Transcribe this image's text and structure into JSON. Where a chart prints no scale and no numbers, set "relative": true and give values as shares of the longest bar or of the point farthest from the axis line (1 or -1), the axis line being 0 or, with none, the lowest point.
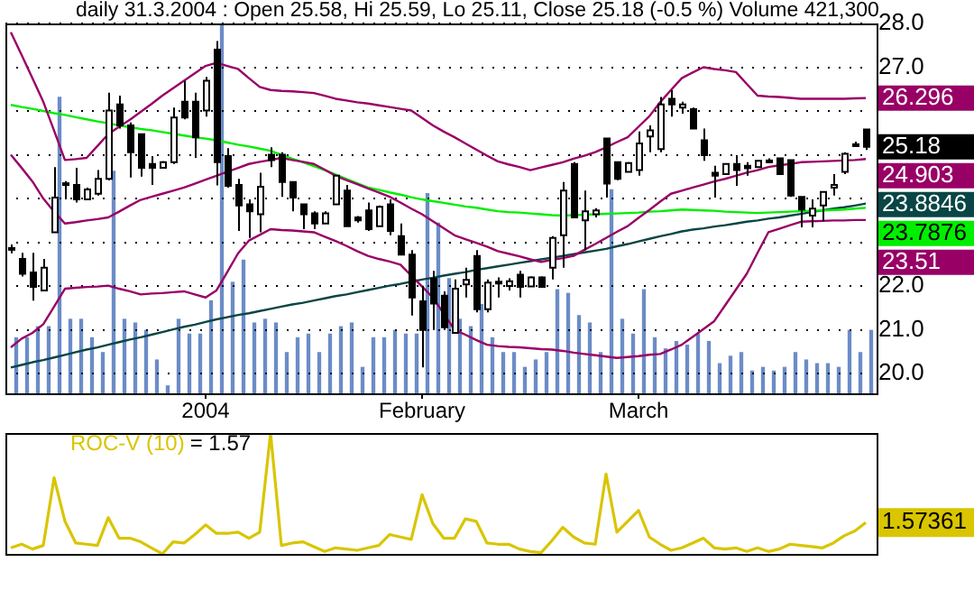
{
  "chart_data": [
    {
      "type": "candlestick",
      "title": "daily 31.3.2004 : Open 25.58, Hi 25.59, Lo 25.11, Close 25.18 (-0.5 %) Volume 421,300",
      "categories": [
        null,
        null,
        null,
        null,
        null,
        null,
        null,
        null,
        null,
        null,
        null,
        null,
        null,
        null,
        null,
        null,
        null,
        null,
        "2004",
        null,
        null,
        null,
        null,
        null,
        null,
        null,
        null,
        null,
        null,
        null,
        null,
        null,
        null,
        null,
        null,
        null,
        null,
        null,
        "February",
        null,
        null,
        null,
        null,
        null,
        null,
        null,
        null,
        null,
        null,
        null,
        null,
        null,
        null,
        null,
        null,
        null,
        null,
        null,
        "March",
        null,
        null,
        null,
        null,
        null,
        null,
        null,
        null,
        null,
        null,
        null,
        null,
        null,
        null,
        null,
        null,
        null,
        null,
        null,
        null,
        null
      ],
      "ohlc": [
        [
          22.83,
          22.95,
          22.75,
          22.87
        ],
        [
          22.62,
          22.76,
          22.22,
          22.28
        ],
        [
          22.31,
          22.76,
          21.67,
          21.98
        ],
        [
          21.9,
          22.62,
          21.9,
          22.42
        ],
        [
          23.23,
          24.72,
          23.23,
          24.02
        ],
        [
          24.33,
          24.4,
          23.98,
          24.35
        ],
        [
          24.31,
          24.7,
          23.91,
          23.98
        ],
        [
          23.98,
          24.25,
          23.98,
          24.21
        ],
        [
          24.11,
          24.65,
          24.07,
          24.45
        ],
        [
          24.45,
          26.42,
          24.42,
          26.01
        ],
        [
          26.15,
          26.35,
          25.6,
          25.67
        ],
        [
          25.67,
          25.74,
          24.48,
          25.06
        ],
        [
          25.47,
          25.47,
          24.5,
          24.7
        ],
        [
          24.79,
          24.97,
          24.31,
          24.7
        ],
        [
          24.7,
          24.85,
          24.7,
          24.83
        ],
        [
          24.83,
          26.08,
          24.79,
          25.85
        ],
        [
          26.21,
          26.69,
          25.81,
          25.85
        ],
        [
          26.21,
          26.42,
          24.93,
          25.4
        ],
        [
          26.01,
          26.78,
          25.87,
          26.69
        ],
        [
          27.4,
          27.6,
          24.3,
          24.83
        ],
        [
          24.97,
          25.15,
          24.25,
          24.29
        ],
        [
          24.31,
          24.45,
          23.26,
          23.84
        ],
        [
          23.87,
          23.98,
          23.1,
          23.71
        ],
        [
          23.64,
          24.59,
          23.23,
          24.27
        ],
        [
          25.0,
          25.17,
          24.72,
          24.88
        ],
        [
          25.0,
          25.06,
          24.04,
          24.38
        ],
        [
          24.38,
          24.38,
          23.71,
          24.02
        ],
        [
          23.87,
          23.87,
          23.3,
          23.64
        ],
        [
          23.66,
          23.71,
          23.3,
          23.43
        ],
        [
          23.43,
          23.71,
          23.43,
          23.66
        ],
        [
          23.87,
          24.52,
          23.87,
          24.52
        ],
        [
          24.18,
          24.31,
          23.37,
          23.37
        ],
        [
          23.57,
          23.6,
          23.45,
          23.5
        ],
        [
          23.73,
          23.91,
          23.26,
          23.3
        ],
        [
          23.37,
          23.84,
          23.37,
          23.81
        ],
        [
          23.87,
          23.98,
          23.16,
          23.26
        ],
        [
          23.14,
          23.43,
          22.72,
          22.72
        ],
        [
          22.72,
          22.82,
          21.33,
          21.74
        ],
        [
          21.65,
          22.01,
          20.14,
          21.0
        ],
        [
          22.17,
          22.35,
          21.0,
          21.6
        ],
        [
          21.78,
          21.88,
          21.0,
          21.06
        ],
        [
          20.93,
          22.15,
          20.93,
          21.94
        ],
        [
          22.04,
          22.42,
          21.74,
          22.14
        ],
        [
          22.69,
          22.82,
          21.4,
          21.47
        ],
        [
          21.47,
          22.15,
          21.4,
          22.08
        ],
        [
          22.08,
          22.2,
          21.74,
          22.1
        ],
        [
          22.0,
          22.18,
          21.9,
          22.11
        ],
        [
          22.26,
          22.35,
          21.74,
          21.98
        ],
        [
          21.99,
          22.22,
          21.99,
          22.2
        ],
        [
          22.2,
          22.22,
          21.98,
          21.98
        ],
        [
          22.42,
          23.14,
          22.15,
          23.1
        ],
        [
          23.16,
          24.38,
          22.42,
          24.18
        ],
        [
          24.79,
          24.83,
          23.57,
          23.57
        ],
        [
          23.5,
          24.18,
          22.82,
          23.71
        ],
        [
          23.64,
          23.78,
          23.57,
          23.73
        ],
        [
          25.37,
          25.37,
          24.02,
          24.34
        ],
        [
          24.83,
          24.83,
          24.42,
          24.45
        ],
        [
          24.61,
          24.83,
          24.61,
          24.81
        ],
        [
          24.65,
          25.53,
          24.52,
          25.26
        ],
        [
          25.42,
          25.67,
          25.06,
          25.56
        ],
        [
          25.13,
          26.32,
          25.06,
          26.15
        ],
        [
          26.28,
          26.48,
          25.87,
          26.15
        ],
        [
          26.08,
          26.21,
          25.94,
          26.15
        ],
        [
          26.04,
          26.08,
          25.6,
          25.6
        ],
        [
          25.33,
          25.6,
          24.86,
          24.99
        ],
        [
          24.59,
          24.75,
          24.02,
          24.52
        ],
        [
          24.56,
          24.79,
          24.56,
          24.79
        ],
        [
          24.79,
          24.99,
          24.29,
          24.65
        ],
        [
          24.75,
          24.83,
          24.52,
          24.69
        ],
        [
          24.72,
          24.88,
          24.72,
          24.86
        ],
        [
          24.85,
          24.92,
          24.81,
          24.87
        ],
        [
          24.92,
          24.92,
          24.56,
          24.56
        ],
        [
          24.88,
          24.88,
          24.04,
          24.07
        ],
        [
          24.04,
          24.04,
          23.34,
          23.75
        ],
        [
          23.61,
          23.98,
          23.34,
          23.77
        ],
        [
          23.84,
          24.15,
          23.48,
          24.15
        ],
        [
          24.25,
          24.56,
          24.07,
          24.31
        ],
        [
          24.61,
          25.06,
          24.56,
          25.02
        ],
        [
          25.22,
          25.3,
          25.2,
          25.24
        ],
        [
          25.58,
          25.59,
          25.11,
          25.18
        ]
      ],
      "value_labels": [
        null,
        null,
        null,
        null,
        null,
        null,
        null,
        null,
        null,
        null,
        null,
        null,
        null,
        null,
        null,
        null,
        null,
        null,
        null,
        null,
        null,
        null,
        null,
        null,
        null,
        null,
        null,
        null,
        null,
        null,
        null,
        null,
        null,
        null,
        null,
        null,
        null,
        null,
        null,
        null,
        null,
        null,
        null,
        null,
        null,
        null,
        null,
        null,
        null,
        null,
        null,
        null,
        null,
        null,
        null,
        null,
        null,
        null,
        null,
        null,
        null,
        null,
        null,
        null,
        null,
        null,
        null,
        null,
        null,
        null,
        null,
        null,
        null,
        null,
        null,
        null,
        null,
        null,
        null,
        "25.18"
      ],
      "series": [
        {
          "type": "line",
          "color": "#990066",
          "values": [
            27.8,
            27.28,
            26.75,
            26.21,
            25.55,
            24.88,
            24.9,
            24.93,
            25.2,
            25.47,
            25.64,
            25.8,
            25.98,
            26.16,
            26.35,
            26.52,
            26.69,
            26.86,
            27.03,
            27.1,
            27.03,
            26.96,
            26.75,
            26.55,
            26.48,
            26.46,
            26.45,
            26.43,
            26.41,
            26.35,
            26.28,
            26.24,
            26.2,
            26.17,
            26.13,
            26.09,
            26.05,
            26.01,
            25.84,
            25.67,
            25.53,
            25.4,
            25.26,
            25.12,
            24.98,
            24.85,
            24.78,
            24.72,
            24.65,
            24.71,
            24.77,
            24.83,
            24.91,
            24.98,
            25.06,
            25.17,
            25.29,
            25.4,
            25.64,
            25.88,
            26.2,
            26.48,
            26.75,
            26.88,
            27.0,
            26.96,
            26.93,
            26.89,
            26.62,
            26.35,
            26.33,
            26.32,
            26.3,
            26.28,
            26.28,
            26.28,
            26.28,
            26.28,
            26.29,
            26.296
          ],
          "value_labels": [
            null,
            null,
            null,
            null,
            null,
            null,
            null,
            null,
            null,
            null,
            null,
            null,
            null,
            null,
            null,
            null,
            null,
            null,
            null,
            null,
            null,
            null,
            null,
            null,
            null,
            null,
            null,
            null,
            null,
            null,
            null,
            null,
            null,
            null,
            null,
            null,
            null,
            null,
            null,
            null,
            null,
            null,
            null,
            null,
            null,
            null,
            null,
            null,
            null,
            null,
            null,
            null,
            null,
            null,
            null,
            null,
            null,
            null,
            null,
            null,
            null,
            null,
            null,
            null,
            null,
            null,
            null,
            null,
            null,
            null,
            null,
            null,
            null,
            null,
            null,
            null,
            null,
            null,
            null,
            "26.296"
          ]
        },
        {
          "type": "line",
          "color": "#990066",
          "values": [
            25.0,
            24.7,
            24.39,
            24.0,
            23.7,
            23.43,
            23.46,
            23.5,
            23.53,
            23.57,
            23.7,
            23.84,
            23.97,
            24.04,
            24.11,
            24.18,
            24.25,
            24.34,
            24.43,
            24.52,
            24.61,
            24.7,
            24.79,
            24.84,
            24.88,
            24.93,
            24.88,
            24.84,
            24.79,
            24.66,
            24.52,
            24.42,
            24.33,
            24.23,
            24.14,
            24.04,
            23.91,
            23.77,
            23.64,
            23.48,
            23.32,
            23.16,
            23.07,
            22.99,
            22.9,
            22.8,
            22.74,
            22.68,
            22.61,
            22.55,
            22.6,
            22.64,
            22.69,
            22.83,
            22.96,
            23.1,
            23.24,
            23.37,
            23.56,
            23.74,
            23.93,
            24.11,
            24.18,
            24.25,
            24.32,
            24.39,
            24.45,
            24.52,
            24.59,
            24.65,
            24.72,
            24.76,
            24.79,
            24.83,
            24.84,
            24.85,
            24.86,
            24.87,
            24.88,
            24.903
          ],
          "value_labels": [
            null,
            null,
            null,
            null,
            null,
            null,
            null,
            null,
            null,
            null,
            null,
            null,
            null,
            null,
            null,
            null,
            null,
            null,
            null,
            null,
            null,
            null,
            null,
            null,
            null,
            null,
            null,
            null,
            null,
            null,
            null,
            null,
            null,
            null,
            null,
            null,
            null,
            null,
            null,
            null,
            null,
            null,
            null,
            null,
            null,
            null,
            null,
            null,
            null,
            null,
            null,
            null,
            null,
            null,
            null,
            null,
            null,
            null,
            null,
            null,
            null,
            null,
            null,
            null,
            null,
            null,
            null,
            null,
            null,
            null,
            null,
            null,
            null,
            null,
            null,
            null,
            null,
            null,
            null,
            "24.903"
          ]
        },
        {
          "type": "line",
          "color": "#990066",
          "values": [
            20.6,
            20.8,
            20.93,
            21.13,
            21.53,
            21.94,
            21.96,
            21.98,
            21.99,
            22.01,
            21.94,
            21.88,
            21.81,
            21.83,
            21.84,
            21.86,
            21.88,
            21.81,
            21.74,
            21.9,
            22.32,
            22.75,
            23.04,
            23.17,
            23.3,
            23.28,
            23.27,
            23.25,
            23.23,
            23.13,
            23.03,
            22.92,
            22.8,
            22.69,
            22.62,
            22.56,
            22.49,
            22.24,
            21.99,
            21.74,
            21.37,
            21.0,
            20.89,
            20.77,
            20.66,
            20.63,
            20.61,
            20.6,
            20.58,
            20.56,
            20.55,
            20.52,
            20.48,
            20.45,
            20.42,
            20.39,
            20.36,
            20.38,
            20.4,
            20.43,
            20.45,
            20.55,
            20.66,
            20.84,
            21.02,
            21.2,
            21.56,
            21.92,
            22.28,
            22.76,
            23.23,
            23.31,
            23.39,
            23.47,
            23.48,
            23.49,
            23.5,
            23.5,
            23.51,
            23.51
          ],
          "value_labels": [
            null,
            null,
            null,
            null,
            null,
            null,
            null,
            null,
            null,
            null,
            null,
            null,
            null,
            null,
            null,
            null,
            null,
            null,
            null,
            null,
            null,
            null,
            null,
            null,
            null,
            null,
            null,
            null,
            null,
            null,
            null,
            null,
            null,
            null,
            null,
            null,
            null,
            null,
            null,
            null,
            null,
            null,
            null,
            null,
            null,
            null,
            null,
            null,
            null,
            null,
            null,
            null,
            null,
            null,
            null,
            null,
            null,
            null,
            null,
            null,
            null,
            null,
            null,
            null,
            null,
            null,
            null,
            null,
            null,
            null,
            null,
            null,
            null,
            null,
            null,
            null,
            null,
            null,
            null,
            "23.51"
          ]
        },
        {
          "type": "line",
          "color": "#00ee00",
          "values": [
            26.14,
            26.09,
            26.05,
            26.0,
            25.95,
            25.91,
            25.86,
            25.81,
            25.76,
            25.72,
            25.67,
            25.63,
            25.59,
            25.56,
            25.52,
            25.48,
            25.44,
            25.4,
            25.37,
            25.33,
            25.28,
            25.23,
            25.19,
            25.14,
            25.09,
            25.0,
            24.91,
            24.83,
            24.74,
            24.65,
            24.55,
            24.45,
            24.35,
            24.25,
            24.2,
            24.14,
            24.09,
            24.03,
            23.98,
            23.94,
            23.9,
            23.86,
            23.82,
            23.79,
            23.75,
            23.71,
            23.69,
            23.68,
            23.66,
            23.64,
            23.62,
            23.61,
            23.62,
            23.63,
            23.64,
            23.65,
            23.66,
            23.67,
            23.68,
            23.7,
            23.71,
            23.73,
            23.75,
            23.74,
            23.73,
            23.72,
            23.7,
            23.69,
            23.68,
            23.67,
            23.68,
            23.69,
            23.7,
            23.71,
            23.72,
            23.73,
            23.74,
            23.75,
            23.77,
            23.7876
          ],
          "value_labels": [
            null,
            null,
            null,
            null,
            null,
            null,
            null,
            null,
            null,
            null,
            null,
            null,
            null,
            null,
            null,
            null,
            null,
            null,
            null,
            null,
            null,
            null,
            null,
            null,
            null,
            null,
            null,
            null,
            null,
            null,
            null,
            null,
            null,
            null,
            null,
            null,
            null,
            null,
            null,
            null,
            null,
            null,
            null,
            null,
            null,
            null,
            null,
            null,
            null,
            null,
            null,
            null,
            null,
            null,
            null,
            null,
            null,
            null,
            null,
            null,
            null,
            null,
            null,
            null,
            null,
            null,
            null,
            null,
            null,
            null,
            null,
            null,
            null,
            null,
            null,
            null,
            null,
            null,
            null,
            "23.7876"
          ]
        },
        {
          "type": "line",
          "color": "#0a4545",
          "values": [
            20.14,
            20.2,
            20.26,
            20.31,
            20.37,
            20.43,
            20.49,
            20.55,
            20.6,
            20.66,
            20.72,
            20.78,
            20.83,
            20.89,
            20.95,
            21.01,
            21.07,
            21.12,
            21.18,
            21.24,
            21.29,
            21.34,
            21.38,
            21.43,
            21.48,
            21.53,
            21.58,
            21.62,
            21.67,
            21.72,
            21.77,
            21.81,
            21.86,
            21.91,
            21.96,
            22.01,
            22.05,
            22.1,
            22.15,
            22.19,
            22.24,
            22.28,
            22.32,
            22.37,
            22.41,
            22.45,
            22.49,
            22.53,
            22.57,
            22.61,
            22.65,
            22.69,
            22.73,
            22.77,
            22.81,
            22.85,
            22.91,
            22.96,
            23.02,
            23.08,
            23.14,
            23.19,
            23.25,
            23.29,
            23.32,
            23.36,
            23.39,
            23.43,
            23.47,
            23.5,
            23.54,
            23.57,
            23.61,
            23.65,
            23.69,
            23.73,
            23.77,
            23.8,
            23.84,
            23.8846
          ],
          "value_labels": [
            null,
            null,
            null,
            null,
            null,
            null,
            null,
            null,
            null,
            null,
            null,
            null,
            null,
            null,
            null,
            null,
            null,
            null,
            null,
            null,
            null,
            null,
            null,
            null,
            null,
            null,
            null,
            null,
            null,
            null,
            null,
            null,
            null,
            null,
            null,
            null,
            null,
            null,
            null,
            null,
            null,
            null,
            null,
            null,
            null,
            null,
            null,
            null,
            null,
            null,
            null,
            null,
            null,
            null,
            null,
            null,
            null,
            null,
            null,
            null,
            null,
            null,
            null,
            null,
            null,
            null,
            null,
            null,
            null,
            null,
            null,
            null,
            null,
            null,
            null,
            null,
            null,
            null,
            null,
            "23.8846"
          ]
        }
      ],
      "ylim": [
        19.55,
        28.0
      ],
      "yticks": [
        {
          "value": 20,
          "label": "20.0"
        },
        {
          "value": 21,
          "label": "21.0"
        },
        {
          "value": 22,
          "label": "22.0"
        },
        {
          "value": 23,
          "label": null
        },
        {
          "value": 24,
          "label": null
        },
        {
          "value": 25,
          "label": null
        },
        {
          "value": 26,
          "label": null
        },
        {
          "value": 27,
          "label": "27.0"
        },
        {
          "value": 28,
          "label": "28.0"
        }
      ],
      "grid": "y"
    },
    {
      "type": "bar",
      "relative": true,
      "color": "#6b8cc7",
      "categories": [
        null,
        null,
        null,
        null,
        null,
        null,
        null,
        null,
        null,
        null,
        null,
        null,
        null,
        null,
        null,
        null,
        null,
        null,
        null,
        null,
        null,
        null,
        null,
        null,
        null,
        null,
        null,
        null,
        null,
        null,
        null,
        null,
        null,
        null,
        null,
        null,
        null,
        null,
        null,
        null,
        null,
        null,
        null,
        null,
        null,
        null,
        null,
        null,
        null,
        null,
        null,
        null,
        null,
        null,
        null,
        null,
        null,
        null,
        null,
        null,
        null,
        null,
        null,
        null,
        null,
        null,
        null,
        null,
        null,
        null,
        null,
        null,
        null,
        null,
        null,
        null,
        null,
        null,
        null,
        null
      ],
      "values": [
        0.15,
        0.15,
        0.18,
        0.18,
        0.8,
        0.2,
        0.2,
        0.15,
        0.11,
        0.6,
        0.2,
        0.19,
        0.17,
        0.09,
        0.02,
        0.2,
        0.16,
        0.16,
        0.25,
        1,
        0.3,
        0.36,
        0.19,
        0.2,
        0.19,
        0.11,
        0.15,
        0.16,
        0.11,
        0.16,
        0.18,
        0.19,
        0.07,
        0.15,
        0.15,
        0.17,
        0.16,
        0.16,
        0.54,
        0.46,
        0.31,
        0.2,
        0.18,
        0.24,
        0.15,
        0.11,
        0.11,
        0.07,
        0.09,
        0.11,
        0.28,
        0.27,
        0.21,
        0.19,
        0.11,
        0.55,
        0.2,
        0.16,
        0.28,
        0.15,
        0.12,
        0.14,
        0.13,
        0.16,
        0.14,
        0.08,
        0.1,
        0.11,
        0.06,
        0.07,
        0.06,
        0.07,
        0.11,
        0.09,
        0.08,
        0.08,
        0.07,
        0.17,
        0.11,
        0.17
      ]
    },
    {
      "type": "line",
      "relative": true,
      "legend": "top left",
      "categories": [
        null,
        null,
        null,
        null,
        null,
        null,
        null,
        null,
        null,
        null,
        null,
        null,
        null,
        null,
        null,
        null,
        null,
        null,
        null,
        null,
        null,
        null,
        null,
        null,
        null,
        null,
        null,
        null,
        null,
        null,
        null,
        null,
        null,
        null,
        null,
        null,
        null,
        null,
        null,
        null,
        null,
        null,
        null,
        null,
        null,
        null,
        null,
        null,
        null,
        null,
        null,
        null,
        null,
        null,
        null,
        null,
        null,
        null,
        null,
        null,
        null,
        null,
        null,
        null,
        null,
        null,
        null,
        null,
        null,
        null,
        null,
        null,
        null,
        null,
        null,
        null,
        null,
        null,
        null,
        null
      ],
      "series": [
        {
          "name": "ROC-V (10)",
          "color": "#d9c500",
          "values": [
            0.05,
            0.08,
            0.04,
            0.07,
            0.63,
            0.27,
            0.09,
            0.08,
            0.07,
            0.3,
            0.13,
            0.13,
            0.1,
            0.05,
            0.0,
            0.1,
            0.09,
            0.16,
            0.24,
            0.17,
            0.17,
            0.18,
            0.13,
            0.18,
            1.0,
            0.07,
            0.09,
            0.1,
            0.06,
            0.02,
            0.05,
            0.04,
            0.03,
            0.05,
            0.07,
            0.16,
            0.14,
            0.12,
            0.49,
            0.25,
            0.13,
            0.13,
            0.29,
            0.27,
            0.09,
            0.08,
            0.08,
            0.04,
            0.02,
            0.01,
            0.11,
            0.22,
            0.14,
            0.09,
            0.08,
            0.66,
            0.18,
            0.27,
            0.36,
            0.14,
            0.08,
            0.03,
            0.05,
            0.09,
            0.13,
            0.05,
            0.04,
            0.05,
            0.02,
            0.05,
            0.02,
            0.04,
            0.08,
            0.07,
            0.06,
            0.05,
            0.09,
            0.15,
            0.19,
            0.26
          ]
        }
      ],
      "annotations": [
        "= 1.57",
        "1.57361"
      ]
    }
  ]
}
